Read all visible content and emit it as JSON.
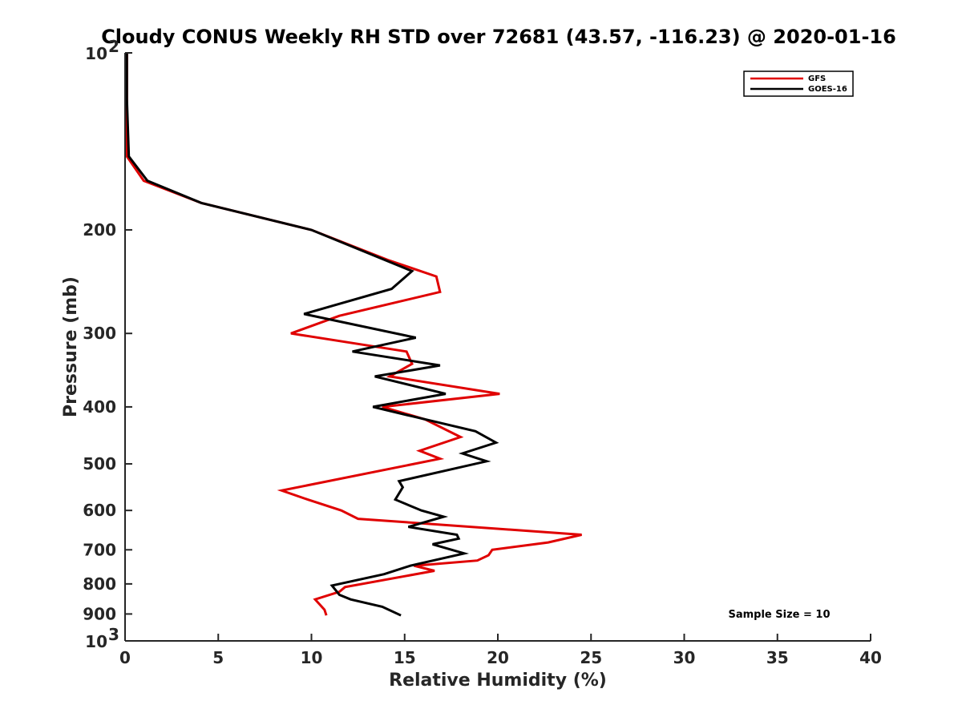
{
  "chart_data": {
    "type": "line",
    "title": "Cloudy CONUS Weekly RH STD over 72681 (43.57, -116.23) @ 2020-01-16",
    "xlabel": "Relative Humidity (%)",
    "ylabel": "Pressure (mb)",
    "xlim": [
      0,
      40
    ],
    "ylim": [
      100,
      1000
    ],
    "y_scale": "log",
    "y_reversed": true,
    "x_ticks": [
      0,
      5,
      10,
      15,
      20,
      25,
      30,
      35,
      40
    ],
    "x_tick_labels": [
      "0",
      "5",
      "10",
      "15",
      "20",
      "25",
      "30",
      "35",
      "40"
    ],
    "y_ticks": [
      200,
      300,
      400,
      500,
      600,
      700,
      800,
      900
    ],
    "y_tick_labels": [
      "200",
      "300",
      "400",
      "500",
      "600",
      "700",
      "800",
      "900"
    ],
    "y_top_label": {
      "base": "10",
      "exp": "2"
    },
    "y_bottom_label": {
      "base": "10",
      "exp": "3"
    },
    "grid": false,
    "legend_position": "top-right",
    "annotation": "Sample Size = 10",
    "series": [
      {
        "name": "GFS",
        "color": "#e00000",
        "points": [
          [
            0.1,
            100
          ],
          [
            0.1,
            120
          ],
          [
            0.1,
            150
          ],
          [
            1.0,
            165
          ],
          [
            4.1,
            180
          ],
          [
            10.0,
            200
          ],
          [
            14.1,
            225
          ],
          [
            16.7,
            240
          ],
          [
            16.9,
            255
          ],
          [
            11.5,
            280
          ],
          [
            8.9,
            300
          ],
          [
            15.1,
            322
          ],
          [
            15.4,
            338
          ],
          [
            14.2,
            355
          ],
          [
            20.1,
            380
          ],
          [
            13.8,
            400
          ],
          [
            16.1,
            420
          ],
          [
            18.0,
            450
          ],
          [
            15.8,
            475
          ],
          [
            16.9,
            490
          ],
          [
            8.4,
            555
          ],
          [
            9.8,
            575
          ],
          [
            11.6,
            600
          ],
          [
            12.5,
            620
          ],
          [
            24.5,
            660
          ],
          [
            22.7,
            680
          ],
          [
            19.7,
            700
          ],
          [
            19.5,
            715
          ],
          [
            18.9,
            730
          ],
          [
            15.5,
            745
          ],
          [
            16.6,
            760
          ],
          [
            11.8,
            810
          ],
          [
            11.5,
            825
          ],
          [
            10.2,
            850
          ],
          [
            10.7,
            885
          ],
          [
            10.8,
            905
          ]
        ]
      },
      {
        "name": "GOES-16",
        "color": "#000000",
        "points": [
          [
            0.1,
            100
          ],
          [
            0.1,
            120
          ],
          [
            0.2,
            150
          ],
          [
            1.2,
            165
          ],
          [
            4.1,
            180
          ],
          [
            10.0,
            200
          ],
          [
            15.4,
            235
          ],
          [
            14.3,
            252
          ],
          [
            9.6,
            278
          ],
          [
            15.6,
            305
          ],
          [
            12.2,
            322
          ],
          [
            16.9,
            340
          ],
          [
            13.4,
            355
          ],
          [
            17.2,
            380
          ],
          [
            13.3,
            400
          ],
          [
            15.4,
            415
          ],
          [
            18.8,
            440
          ],
          [
            19.9,
            460
          ],
          [
            18.1,
            480
          ],
          [
            19.4,
            495
          ],
          [
            14.7,
            535
          ],
          [
            14.9,
            548
          ],
          [
            14.5,
            575
          ],
          [
            15.9,
            600
          ],
          [
            17.1,
            615
          ],
          [
            15.2,
            640
          ],
          [
            17.8,
            660
          ],
          [
            17.9,
            670
          ],
          [
            16.5,
            685
          ],
          [
            18.2,
            710
          ],
          [
            15.3,
            745
          ],
          [
            13.9,
            770
          ],
          [
            11.1,
            805
          ],
          [
            11.3,
            820
          ],
          [
            11.5,
            835
          ],
          [
            12.1,
            850
          ],
          [
            13.8,
            875
          ],
          [
            14.8,
            905
          ]
        ]
      }
    ]
  }
}
